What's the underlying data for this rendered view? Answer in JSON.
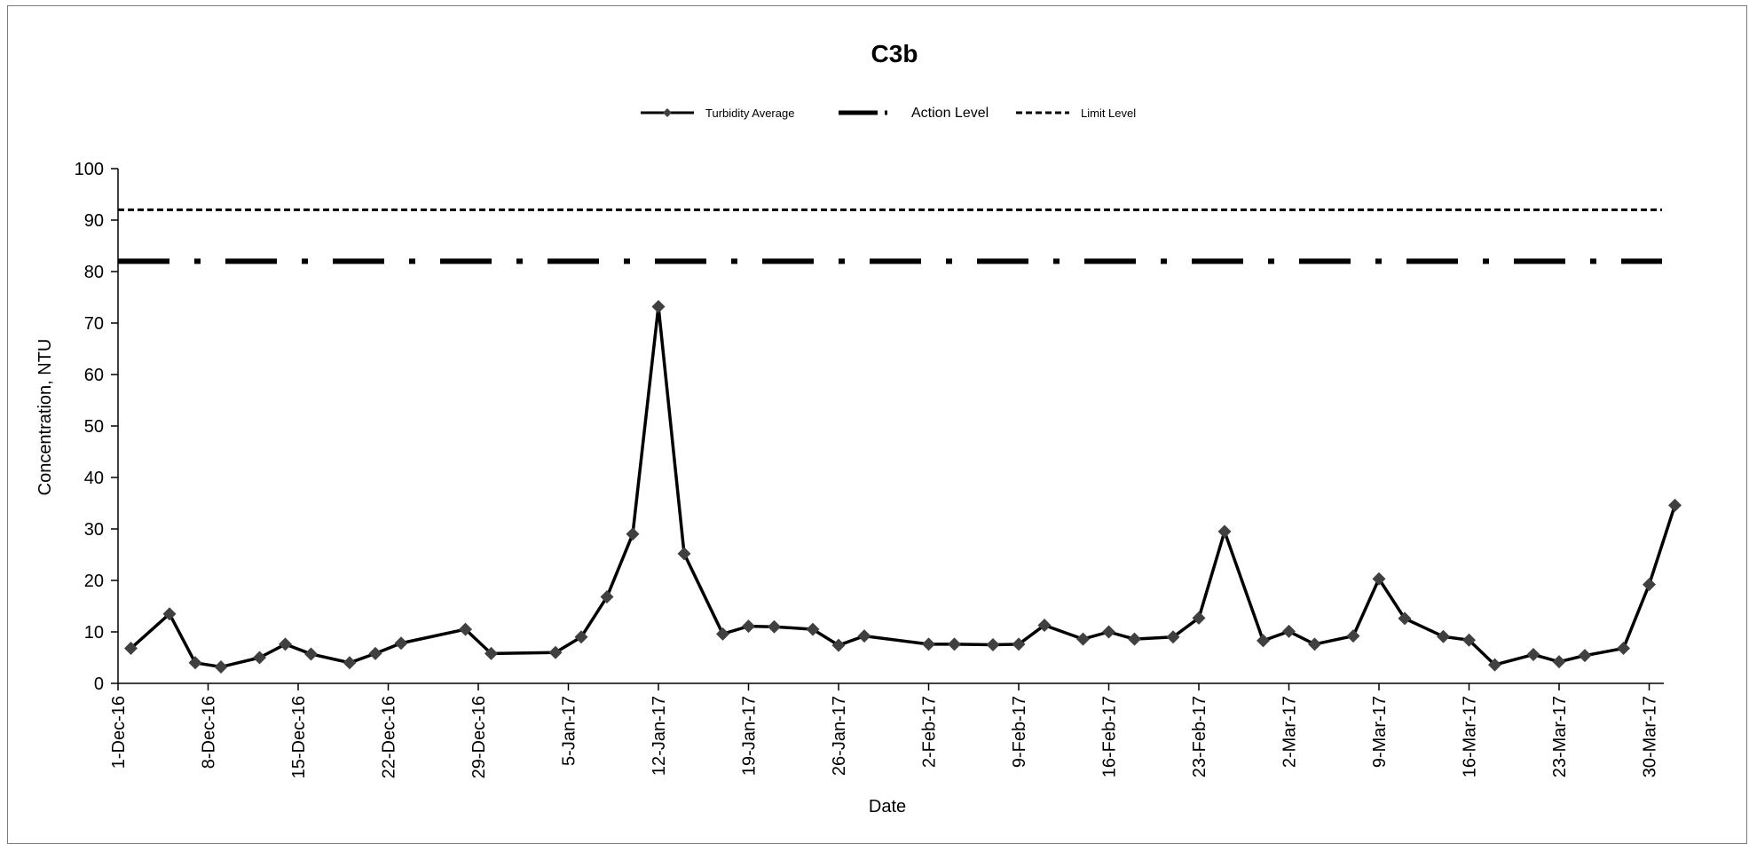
{
  "chart_data": {
    "type": "line",
    "title": "C3b",
    "xlabel": "Date",
    "ylabel": "Concentration, NTU",
    "ylim": [
      0,
      100
    ],
    "yticks": [
      0,
      10,
      20,
      30,
      40,
      50,
      60,
      70,
      80,
      90,
      100
    ],
    "xlim": [
      "2016-12-01",
      "2017-03-31"
    ],
    "xtick_labels": [
      "1-Dec-16",
      "8-Dec-16",
      "15-Dec-16",
      "22-Dec-16",
      "29-Dec-16",
      "5-Jan-17",
      "12-Jan-17",
      "19-Jan-17",
      "26-Jan-17",
      "2-Feb-17",
      "9-Feb-17",
      "16-Feb-17",
      "23-Feb-17",
      "2-Mar-17",
      "9-Mar-17",
      "16-Mar-17",
      "23-Mar-17",
      "30-Mar-17"
    ],
    "legend_position": "top-center",
    "grid": false,
    "series": [
      {
        "name": "Turbidity Average",
        "style": "solid line with diamond markers",
        "color": "#000000",
        "marker_color": "#404040",
        "x": [
          "2016-12-02",
          "2016-12-05",
          "2016-12-07",
          "2016-12-09",
          "2016-12-12",
          "2016-12-14",
          "2016-12-16",
          "2016-12-19",
          "2016-12-21",
          "2016-12-23",
          "2016-12-28",
          "2016-12-30",
          "2017-01-04",
          "2017-01-06",
          "2017-01-08",
          "2017-01-10",
          "2017-01-12",
          "2017-01-14",
          "2017-01-17",
          "2017-01-19",
          "2017-01-21",
          "2017-01-24",
          "2017-01-26",
          "2017-01-28",
          "2017-02-02",
          "2017-02-04",
          "2017-02-07",
          "2017-02-09",
          "2017-02-11",
          "2017-02-14",
          "2017-02-16",
          "2017-02-18",
          "2017-02-21",
          "2017-02-23",
          "2017-02-25",
          "2017-02-28",
          "2017-03-02",
          "2017-03-04",
          "2017-03-07",
          "2017-03-09",
          "2017-03-11",
          "2017-03-14",
          "2017-03-16",
          "2017-03-18",
          "2017-03-21",
          "2017-03-23",
          "2017-03-25",
          "2017-03-28",
          "2017-03-30",
          "2017-04-01"
        ],
        "values": [
          6.8,
          13.5,
          4.0,
          3.2,
          5.0,
          7.6,
          5.7,
          4.0,
          5.8,
          7.8,
          10.5,
          5.8,
          6.0,
          9.0,
          16.8,
          29.0,
          73.2,
          25.2,
          9.6,
          11.1,
          11.0,
          10.5,
          7.4,
          9.2,
          7.6,
          7.6,
          7.5,
          7.6,
          11.3,
          8.6,
          10.0,
          8.6,
          9.0,
          12.7,
          29.5,
          8.3,
          10.1,
          7.6,
          9.2,
          20.3,
          12.6,
          9.1,
          8.4,
          3.6,
          5.6,
          4.2,
          5.4,
          6.8,
          19.2,
          34.6
        ]
      },
      {
        "name": "Action Level",
        "style": "thick dash-dot line",
        "color": "#000000",
        "value": 82
      },
      {
        "name": "Limit Level",
        "style": "short-dashed line",
        "color": "#000000",
        "value": 92
      }
    ]
  }
}
